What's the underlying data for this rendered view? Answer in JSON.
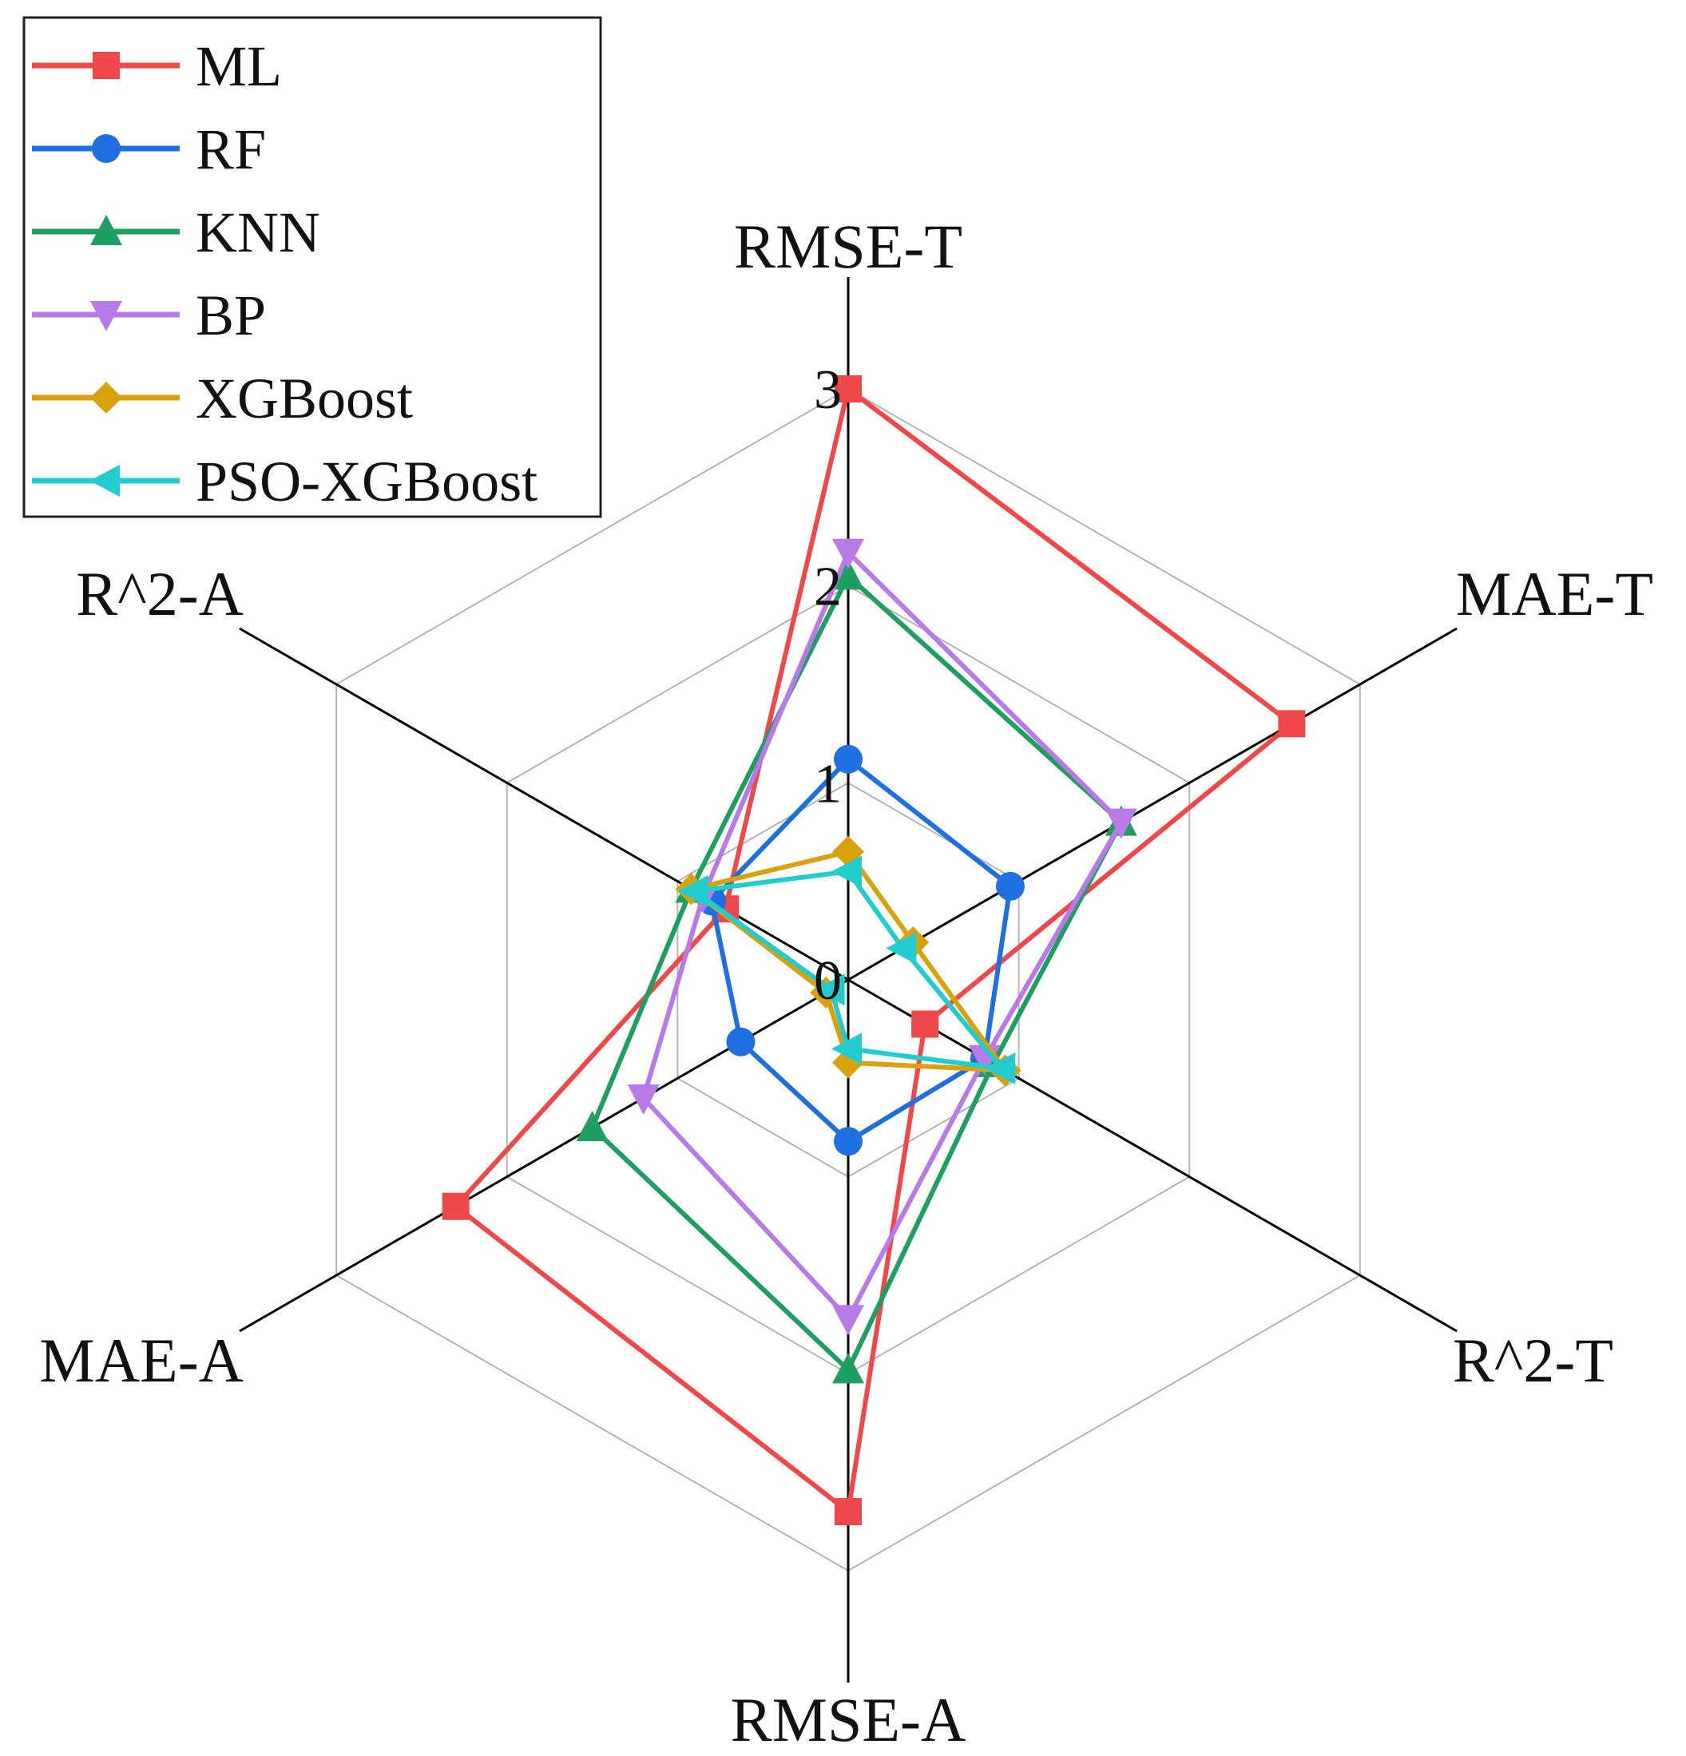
{
  "chart_data": {
    "type": "radar",
    "axes": [
      "RMSE-T",
      "MAE-T",
      "R^2-T",
      "RMSE-A",
      "MAE-A",
      "R^2-A"
    ],
    "rlim": [
      0,
      3
    ],
    "ticks": [
      "0",
      "1",
      "2",
      "3"
    ],
    "grid": true,
    "legend_position": "top-left",
    "series": [
      {
        "name": "ML",
        "color": "#f0474a",
        "marker": "square",
        "values": [
          3.0,
          2.6,
          0.45,
          2.7,
          2.3,
          0.72
        ]
      },
      {
        "name": "RF",
        "color": "#1f6fe0",
        "marker": "circle",
        "values": [
          1.12,
          0.95,
          0.8,
          0.82,
          0.63,
          0.8
        ]
      },
      {
        "name": "KNN",
        "color": "#1f9e62",
        "marker": "triangle-up",
        "values": [
          2.05,
          1.6,
          0.85,
          1.98,
          1.5,
          0.92
        ]
      },
      {
        "name": "BP",
        "color": "#b87ae6",
        "marker": "triangle-down",
        "values": [
          2.17,
          1.6,
          0.8,
          1.72,
          1.2,
          0.85
        ]
      },
      {
        "name": "XGBoost",
        "color": "#d9a20c",
        "marker": "diamond",
        "values": [
          0.65,
          0.38,
          0.92,
          0.42,
          0.13,
          0.92
        ]
      },
      {
        "name": "PSO-XGBoost",
        "color": "#22cccc",
        "marker": "triangle-left",
        "values": [
          0.55,
          0.32,
          0.9,
          0.35,
          0.1,
          0.9
        ]
      }
    ]
  }
}
